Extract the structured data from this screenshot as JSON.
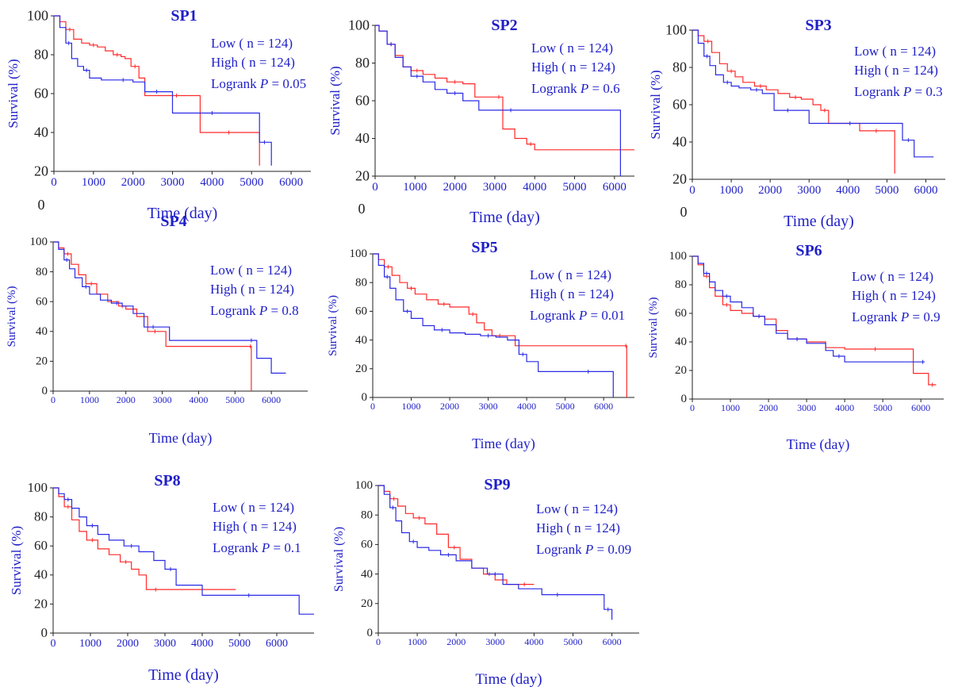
{
  "colors": {
    "low": "#ff2a2a",
    "high": "#2a2ae6",
    "text": "#1f1fc8",
    "axis": "#222222"
  },
  "legend": {
    "low": "Low ( n = 124)",
    "high": "High ( n = 124)",
    "logrank_prefix": "Logrank ",
    "p_symbol": "P",
    "p_eq": " = "
  },
  "chart_data": [
    {
      "type": "line",
      "title": "SP1",
      "xlabel": "Time (day)",
      "ylabel": "Survival (%)",
      "xlim": [
        0,
        6500
      ],
      "ylim": [
        20,
        100
      ],
      "xticks": [
        "0",
        "1000",
        "2000",
        "3000",
        "4000",
        "5000",
        "6000"
      ],
      "yticks": [
        "20",
        "40",
        "60",
        "80",
        "100"
      ],
      "extra_label": "0",
      "p_value": "0.05",
      "series": [
        {
          "group": "low",
          "x": [
            0,
            150,
            300,
            500,
            700,
            900,
            1100,
            1300,
            1500,
            1700,
            1800,
            1950,
            2150,
            2300,
            3000,
            3200,
            3600,
            3700,
            5150,
            5200
          ],
          "y": [
            100,
            97,
            93,
            88,
            86,
            85,
            84,
            82,
            80,
            79,
            78,
            74,
            68,
            59,
            59,
            59,
            59,
            40,
            40,
            23
          ]
        },
        {
          "group": "high",
          "x": [
            0,
            150,
            300,
            450,
            600,
            750,
            900,
            1200,
            1500,
            2000,
            2200,
            2300,
            2900,
            3000,
            3500,
            4500,
            5100,
            5200,
            5450,
            5500
          ],
          "y": [
            100,
            94,
            86,
            78,
            74,
            72,
            68,
            67,
            67,
            66,
            66,
            61,
            61,
            50,
            50,
            50,
            50,
            35,
            35,
            23
          ]
        }
      ]
    },
    {
      "type": "line",
      "title": "SP2",
      "xlabel": "Time (day)",
      "ylabel": "Survival (%)",
      "xlim": [
        0,
        6500
      ],
      "ylim": [
        20,
        100
      ],
      "xticks": [
        "0",
        "1000",
        "2000",
        "3000",
        "4000",
        "5000",
        "6000"
      ],
      "yticks": [
        "20",
        "40",
        "60",
        "80",
        "100"
      ],
      "extra_label": "0",
      "p_value": "0.6",
      "series": [
        {
          "group": "low",
          "x": [
            0,
            100,
            300,
            500,
            700,
            900,
            1200,
            1500,
            1800,
            2200,
            2500,
            3000,
            3200,
            3500,
            3800,
            4000,
            6500
          ],
          "y": [
            100,
            97,
            90,
            84,
            78,
            76,
            74,
            72,
            70,
            69,
            62,
            62,
            45,
            40,
            37,
            34,
            34
          ]
        },
        {
          "group": "high",
          "x": [
            0,
            100,
            300,
            500,
            700,
            900,
            1200,
            1500,
            1800,
            2200,
            2600,
            3000,
            3800,
            6100,
            6150
          ],
          "y": [
            100,
            97,
            90,
            83,
            78,
            73,
            70,
            66,
            64,
            60,
            55,
            55,
            55,
            55,
            20
          ]
        }
      ]
    },
    {
      "type": "line",
      "title": "SP3",
      "xlabel": "Time (day)",
      "ylabel": "Survival (%)",
      "xlim": [
        0,
        6500
      ],
      "ylim": [
        20,
        100
      ],
      "xticks": [
        "0",
        "1000",
        "2000",
        "3000",
        "4000",
        "5000",
        "6000"
      ],
      "yticks": [
        "20",
        "40",
        "60",
        "80",
        "100"
      ],
      "extra_label": "0",
      "p_value": "0.3",
      "series": [
        {
          "group": "low",
          "x": [
            0,
            150,
            300,
            500,
            700,
            900,
            1100,
            1300,
            1600,
            1900,
            2200,
            2500,
            2800,
            3100,
            3300,
            3500,
            4200,
            4300,
            5150,
            5200
          ],
          "y": [
            100,
            97,
            94,
            88,
            82,
            78,
            75,
            72,
            70,
            68,
            66,
            64,
            63,
            60,
            57,
            50,
            50,
            46,
            46,
            23
          ]
        },
        {
          "group": "high",
          "x": [
            0,
            150,
            300,
            450,
            600,
            800,
            1000,
            1200,
            1500,
            1800,
            2000,
            2100,
            2800,
            3000,
            4000,
            4100,
            5300,
            5400,
            5700,
            6200
          ],
          "y": [
            100,
            93,
            86,
            81,
            76,
            72,
            70,
            69,
            68,
            66,
            66,
            57,
            57,
            50,
            50,
            50,
            50,
            41,
            32,
            32
          ]
        }
      ]
    },
    {
      "type": "line",
      "title": "SP4",
      "xlabel": "Time (day)",
      "ylabel": "Survival (%)",
      "xlim": [
        0,
        7000
      ],
      "ylim": [
        0,
        100
      ],
      "xticks": [
        "0",
        "1000",
        "2000",
        "3000",
        "4000",
        "5000",
        "6000"
      ],
      "yticks": [
        "0",
        "20",
        "40",
        "60",
        "80",
        "100"
      ],
      "extra_label": "",
      "p_value": "0.8",
      "series": [
        {
          "group": "low",
          "x": [
            0,
            150,
            300,
            500,
            700,
            900,
            1200,
            1500,
            1800,
            2000,
            2300,
            2600,
            3000,
            3100,
            5400,
            5450
          ],
          "y": [
            100,
            96,
            92,
            85,
            78,
            72,
            65,
            60,
            57,
            55,
            50,
            40,
            40,
            30,
            30,
            0
          ]
        },
        {
          "group": "high",
          "x": [
            0,
            150,
            300,
            450,
            600,
            800,
            1000,
            1300,
            1600,
            1900,
            2200,
            2500,
            3000,
            3200,
            5300,
            5600,
            6000,
            6400
          ],
          "y": [
            100,
            95,
            88,
            82,
            76,
            70,
            65,
            61,
            59,
            57,
            52,
            43,
            43,
            34,
            34,
            22,
            12,
            12
          ]
        }
      ]
    },
    {
      "type": "line",
      "title": "SP5",
      "xlabel": "Time (day)",
      "ylabel": "Survival (%)",
      "xlim": [
        0,
        6800
      ],
      "ylim": [
        0,
        100
      ],
      "xticks": [
        "0",
        "1000",
        "2000",
        "3000",
        "4000",
        "5000",
        "6000"
      ],
      "yticks": [
        "0",
        "20",
        "40",
        "60",
        "80",
        "100"
      ],
      "extra_label": "",
      "p_value": "0.01",
      "series": [
        {
          "group": "low",
          "x": [
            0,
            150,
            300,
            500,
            700,
            900,
            1100,
            1400,
            1700,
            2000,
            2300,
            2500,
            2700,
            2900,
            3100,
            3500,
            3700,
            6550,
            6600
          ],
          "y": [
            100,
            96,
            91,
            85,
            80,
            76,
            72,
            68,
            65,
            63,
            63,
            58,
            52,
            47,
            43,
            43,
            36,
            36,
            0
          ]
        },
        {
          "group": "high",
          "x": [
            0,
            150,
            300,
            450,
            600,
            800,
            1000,
            1300,
            1600,
            2000,
            2400,
            2800,
            3200,
            3500,
            3800,
            4000,
            4300,
            5000,
            6200,
            6250
          ],
          "y": [
            100,
            92,
            84,
            76,
            68,
            60,
            55,
            50,
            47,
            45,
            44,
            43,
            42,
            40,
            30,
            25,
            18,
            18,
            18,
            0
          ]
        }
      ]
    },
    {
      "type": "line",
      "title": "SP6",
      "xlabel": "Time (day)",
      "ylabel": "Survival (%)",
      "xlim": [
        0,
        6600
      ],
      "ylim": [
        0,
        100
      ],
      "xticks": [
        "0",
        "1000",
        "2000",
        "3000",
        "4000",
        "5000",
        "6000"
      ],
      "yticks": [
        "0",
        "20",
        "40",
        "60",
        "80",
        "100"
      ],
      "extra_label": "",
      "p_value": "0.9",
      "series": [
        {
          "group": "low",
          "x": [
            0,
            150,
            300,
            450,
            600,
            800,
            1000,
            1300,
            1600,
            1900,
            2200,
            2500,
            3000,
            3500,
            4000,
            5600,
            5800,
            6200,
            6400
          ],
          "y": [
            100,
            94,
            86,
            78,
            72,
            66,
            62,
            60,
            58,
            56,
            48,
            42,
            40,
            36,
            35,
            35,
            18,
            10,
            10
          ]
        },
        {
          "group": "high",
          "x": [
            0,
            150,
            300,
            450,
            600,
            800,
            1000,
            1300,
            1600,
            1900,
            2200,
            2500,
            3000,
            3500,
            3700,
            4000,
            5000,
            6000,
            6100
          ],
          "y": [
            100,
            95,
            88,
            82,
            76,
            72,
            68,
            64,
            58,
            52,
            46,
            42,
            39,
            34,
            30,
            26,
            26,
            26,
            26
          ]
        }
      ]
    },
    {
      "type": "line",
      "title": "SP8",
      "xlabel": "Time (day)",
      "ylabel": "Survival (%)",
      "xlim": [
        0,
        7000
      ],
      "ylim": [
        0,
        100
      ],
      "xticks": [
        "0",
        "1000",
        "2000",
        "3000",
        "4000",
        "5000",
        "6000"
      ],
      "yticks": [
        "0",
        "20",
        "40",
        "60",
        "80",
        "100"
      ],
      "extra_label": "",
      "p_value": "0.1",
      "series": [
        {
          "group": "low",
          "x": [
            0,
            150,
            300,
            500,
            700,
            900,
            1200,
            1500,
            1800,
            2100,
            2300,
            2500,
            3000,
            4900
          ],
          "y": [
            100,
            94,
            87,
            78,
            70,
            64,
            58,
            54,
            49,
            44,
            40,
            30,
            30,
            30
          ]
        },
        {
          "group": "high",
          "x": [
            0,
            150,
            300,
            500,
            700,
            900,
            1200,
            1500,
            1900,
            2300,
            2700,
            3000,
            3300,
            3600,
            4000,
            6500,
            6600,
            7000
          ],
          "y": [
            100,
            96,
            92,
            86,
            80,
            74,
            68,
            64,
            60,
            56,
            50,
            44,
            33,
            33,
            26,
            26,
            13,
            13
          ]
        }
      ]
    },
    {
      "type": "line",
      "title": "SP9",
      "xlabel": "Time (day)",
      "ylabel": "Survival (%)",
      "xlim": [
        0,
        6700
      ],
      "ylim": [
        0,
        100
      ],
      "xticks": [
        "0",
        "1000",
        "2000",
        "3000",
        "4000",
        "5000",
        "6000"
      ],
      "yticks": [
        "0",
        "20",
        "40",
        "60",
        "80",
        "100"
      ],
      "extra_label": "",
      "p_value": "0.09",
      "series": [
        {
          "group": "low",
          "x": [
            0,
            150,
            300,
            500,
            700,
            900,
            1200,
            1500,
            1800,
            2100,
            2400,
            2700,
            3000,
            3300,
            3600,
            3900,
            4000
          ],
          "y": [
            100,
            96,
            91,
            86,
            81,
            78,
            74,
            67,
            58,
            50,
            44,
            40,
            36,
            33,
            33,
            33,
            33
          ]
        },
        {
          "group": "high",
          "x": [
            0,
            150,
            300,
            450,
            600,
            800,
            1000,
            1300,
            1600,
            2000,
            2400,
            2800,
            3200,
            3600,
            4200,
            5000,
            5500,
            5800,
            6000
          ],
          "y": [
            100,
            94,
            85,
            76,
            68,
            62,
            58,
            56,
            53,
            49,
            44,
            40,
            33,
            30,
            26,
            26,
            26,
            16,
            9
          ]
        }
      ]
    }
  ]
}
